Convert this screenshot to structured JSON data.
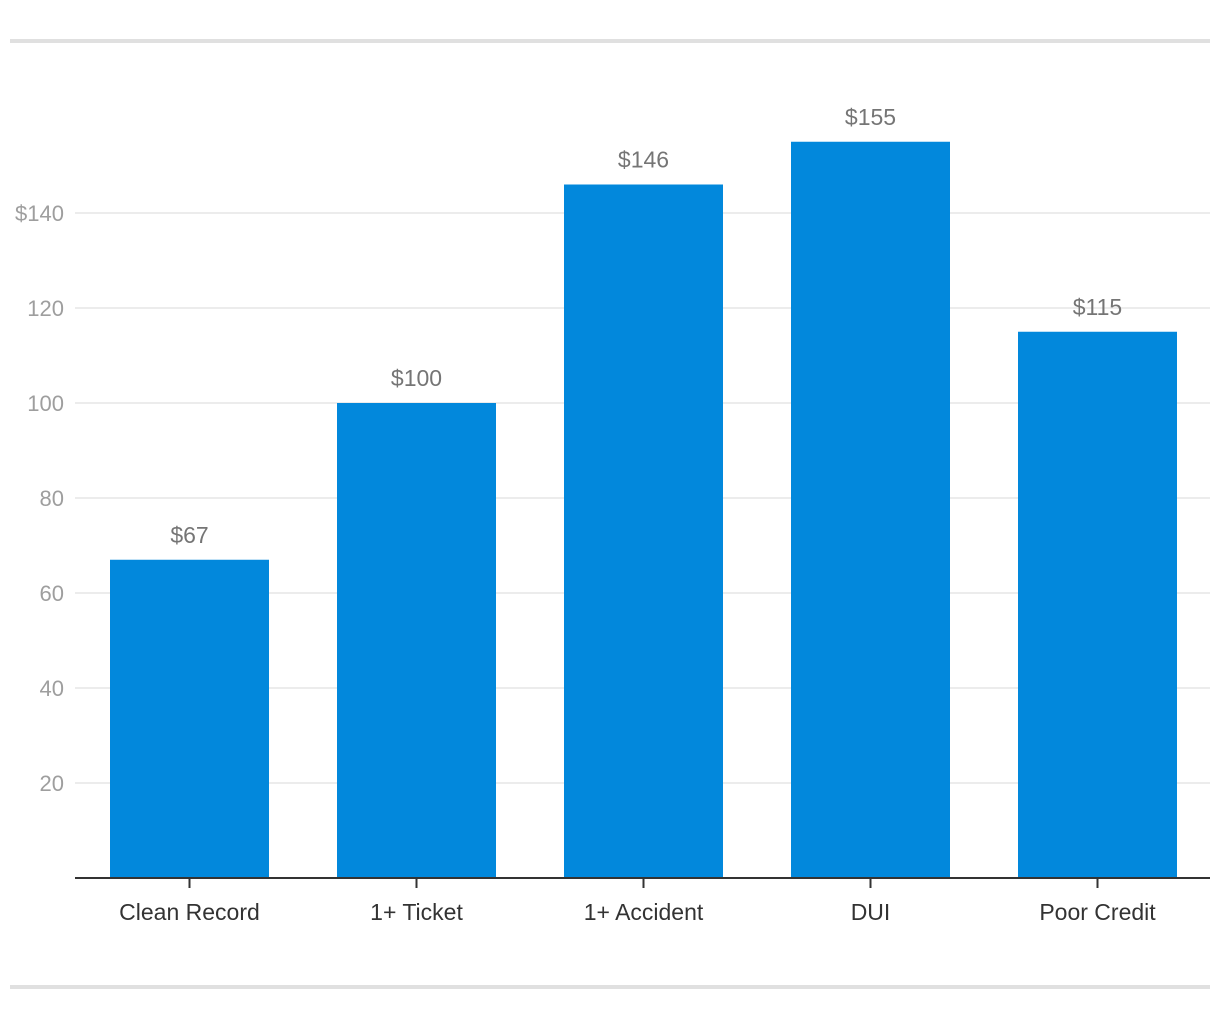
{
  "chart_data": {
    "type": "bar",
    "categories": [
      "Clean Record",
      "1+ Ticket",
      "1+ Accident",
      "DUI",
      "Poor Credit"
    ],
    "values": [
      67,
      100,
      146,
      155,
      115
    ],
    "data_labels": [
      "$67",
      "$100",
      "$146",
      "$155",
      "$115"
    ],
    "title": "",
    "xlabel": "",
    "ylabel": "",
    "ylim": [
      0,
      160
    ],
    "y_ticks": [
      20,
      40,
      60,
      80,
      100,
      120,
      140
    ],
    "y_tick_labels": [
      "20",
      "40",
      "60",
      "80",
      "100",
      "120",
      "$140"
    ],
    "grid": true,
    "legend": "none",
    "bar_color": "#0288DC"
  }
}
